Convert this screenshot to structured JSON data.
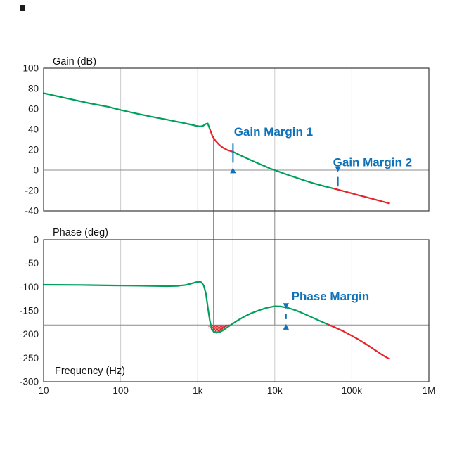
{
  "labels": {
    "gain_axis": "Gain (dB)",
    "phase_axis": "Phase (deg)",
    "freq_axis": "Frequency (Hz)",
    "gain_margin_1": "Gain Margin 1",
    "gain_margin_2": "Gain Margin 2",
    "phase_margin": "Phase Margin"
  },
  "colors": {
    "curve_green": "#009F5B",
    "curve_red": "#E4252B",
    "annotation_blue": "#0D72B9",
    "grid": "#cccccc",
    "reference_line": "#8c8c8c",
    "connector": "#8a8a8a",
    "axis": "#3a3a3a",
    "tick_text": "#1a1a1a",
    "background": "#ffffff"
  },
  "x_axis": {
    "label": "Frequency (Hz)",
    "scale": "log",
    "tick_labels": [
      "10",
      "100",
      "1k",
      "10k",
      "100k",
      "1M"
    ],
    "tick_values": [
      10,
      100,
      1000,
      10000,
      100000,
      1000000
    ],
    "grid_values": [
      100,
      1000,
      10000,
      100000
    ]
  },
  "chart_data": [
    {
      "type": "line",
      "title": "Gain (dB)",
      "xlabel": "Frequency (Hz)",
      "ylabel": "Gain (dB)",
      "x_scale": "log",
      "xlim": [
        10,
        1000000
      ],
      "ylim": [
        -40,
        100
      ],
      "yticks": [
        100,
        80,
        60,
        40,
        20,
        0,
        -20,
        -40
      ],
      "reference_line_y": 0,
      "grid": "vertical-decades",
      "legend": "none",
      "series": [
        {
          "name": "gain-curve-green-1",
          "color": "green",
          "x": [
            10,
            20,
            40,
            70,
            100,
            150,
            250,
            400,
            600,
            800,
            950,
            1080,
            1180,
            1270,
            1350,
            1440
          ],
          "y": [
            75.5,
            70.5,
            65.5,
            62,
            59,
            56,
            52.5,
            49.5,
            46.8,
            44.8,
            43.5,
            42.8,
            43.6,
            45.3,
            45.8,
            40
          ]
        },
        {
          "name": "gain-curve-red-1",
          "color": "red",
          "x": [
            1440,
            1550,
            1700,
            1900,
            2150,
            2450,
            2870
          ],
          "y": [
            40,
            33.5,
            28.8,
            24.9,
            21.8,
            19.6,
            18.0
          ]
        },
        {
          "name": "gain-curve-green-2",
          "color": "green",
          "x": [
            2870,
            3300,
            3800,
            4400,
            5200,
            6200,
            7400,
            8600,
            10000,
            12000,
            15000,
            19000,
            24000,
            30000,
            38000,
            48000,
            60000
          ],
          "y": [
            18.0,
            15.8,
            13.6,
            11.4,
            8.9,
            6.4,
            3.9,
            1.7,
            0,
            -2.2,
            -4.8,
            -7.4,
            -10,
            -12.3,
            -14.5,
            -16.5,
            -18.3
          ]
        },
        {
          "name": "gain-curve-red-2",
          "color": "red",
          "x": [
            60000,
            75000,
            95000,
            120000,
            155000,
            200000,
            250000,
            300000
          ],
          "y": [
            -18.3,
            -20.2,
            -22.3,
            -24.4,
            -26.6,
            -28.8,
            -30.8,
            -32.5
          ]
        }
      ]
    },
    {
      "type": "line",
      "title": "Phase (deg)",
      "xlabel": "Frequency (Hz)",
      "ylabel": "Phase (deg)",
      "x_scale": "log",
      "xlim": [
        10,
        1000000
      ],
      "ylim": [
        -300,
        0
      ],
      "yticks": [
        0,
        -50,
        -100,
        -150,
        -200,
        -250,
        -300
      ],
      "reference_line_y": -180,
      "grid": "vertical-decades",
      "legend": "none",
      "series": [
        {
          "name": "phase-curve-green",
          "color": "green",
          "x": [
            10,
            30,
            80,
            150,
            250,
            400,
            550,
            700,
            850,
            950,
            1050,
            1120,
            1200,
            1280,
            1360,
            1440,
            1520,
            1620,
            1750,
            1900,
            2100,
            2400,
            2800,
            3300,
            4000,
            5000,
            6500,
            8000,
            10000,
            12000,
            15000,
            19000,
            24000,
            30000,
            38000,
            50000
          ],
          "y": [
            -95,
            -95.5,
            -96.5,
            -97,
            -97.5,
            -98,
            -97.5,
            -95.5,
            -92,
            -89.5,
            -88.5,
            -90,
            -97,
            -115,
            -145,
            -172,
            -188,
            -194.5,
            -196.5,
            -195.5,
            -192,
            -185.5,
            -178,
            -170.5,
            -162.5,
            -155,
            -148,
            -143.5,
            -140.5,
            -141,
            -144,
            -149.5,
            -156.5,
            -163.5,
            -171,
            -179.5
          ]
        },
        {
          "name": "phase-curve-red",
          "color": "red",
          "x": [
            50000,
            62000,
            78000,
            95000,
            120000,
            155000,
            200000,
            250000,
            300000
          ],
          "y": [
            -179.5,
            -186,
            -193.5,
            -201,
            -210,
            -221,
            -233,
            -243.5,
            -251
          ]
        }
      ]
    }
  ],
  "phase_hatch": {
    "color": "red",
    "segments": [
      [
        1465,
        -183
      ],
      [
        1520,
        -188
      ],
      [
        1575,
        -191.5
      ],
      [
        1635,
        -193.8
      ],
      [
        1700,
        -195.5
      ],
      [
        1770,
        -196.3
      ],
      [
        1845,
        -196.4
      ],
      [
        1925,
        -195.8
      ],
      [
        2010,
        -194.4
      ],
      [
        2100,
        -192.3
      ],
      [
        2200,
        -189.8
      ],
      [
        2310,
        -186.8
      ],
      [
        2430,
        -183.8
      ],
      [
        2560,
        -181
      ]
    ]
  },
  "connectors": [
    {
      "f": 1600,
      "gain_v": 32.5,
      "phase_v": -196
    },
    {
      "f": 2870,
      "gain_v": 26,
      "phase_v": -180
    },
    {
      "f": 10000,
      "gain_v": 0,
      "phase_v": -180
    }
  ],
  "annotations": [
    {
      "type": "label",
      "name": "gain-margin-1-label",
      "plot": "gain",
      "text": "Gain Margin 1",
      "f": 2950,
      "v": 38,
      "anchor": "start"
    },
    {
      "type": "arrow",
      "name": "gain-margin-1-arrow",
      "plot": "gain",
      "f": 2870,
      "v1": 26,
      "v2": 2.5,
      "heads": [
        "end"
      ]
    },
    {
      "type": "label",
      "name": "gain-margin-2-label",
      "plot": "gain",
      "text": "Gain Margin 2",
      "f": 57000,
      "v": 8,
      "anchor": "start"
    },
    {
      "type": "arrow",
      "name": "gain-margin-2-arrow",
      "plot": "gain",
      "f": 66000,
      "v1": -16,
      "v2": -1.8,
      "heads": [
        "end"
      ]
    },
    {
      "type": "label",
      "name": "phase-margin-label",
      "plot": "phase",
      "text": "Phase Margin",
      "f": 16500,
      "v": -119,
      "anchor": "start"
    },
    {
      "type": "arrow",
      "name": "phase-margin-arrow",
      "plot": "phase",
      "f": 14000,
      "v1": -178,
      "v2": -146,
      "heads": [
        "start",
        "end"
      ]
    }
  ]
}
